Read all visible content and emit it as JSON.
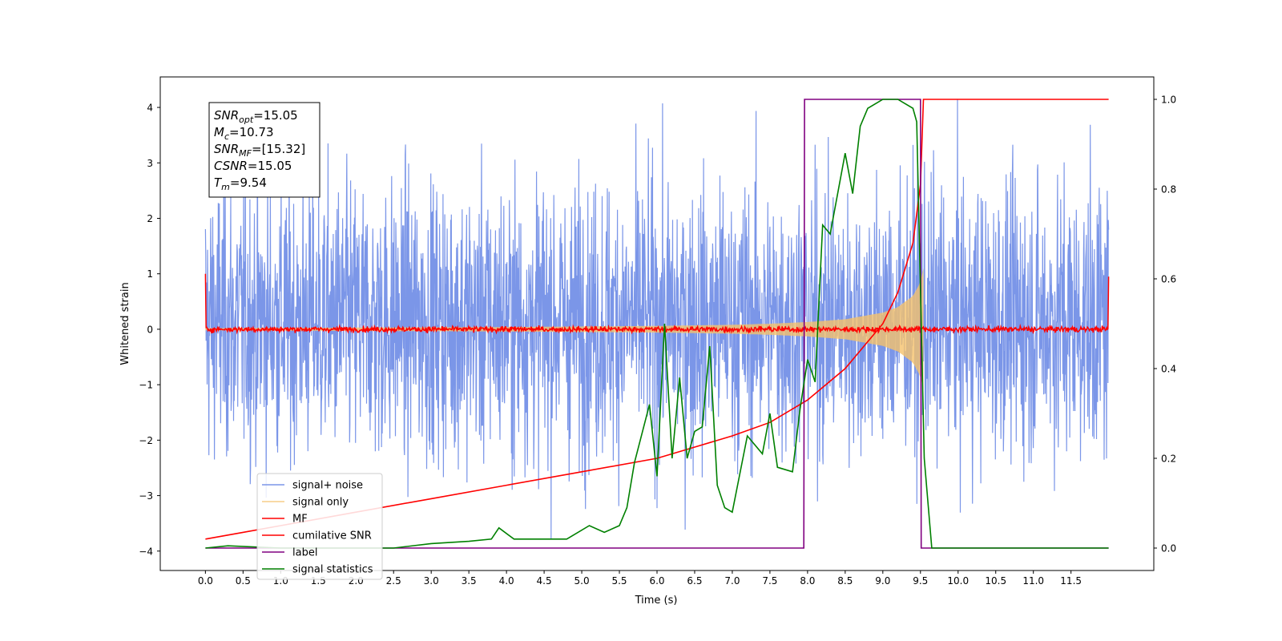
{
  "chart_data": {
    "type": "line",
    "title": "",
    "xlabel": "Time (s)",
    "ylabel": "Whitened strain",
    "xlim": [
      -0.6,
      12.6
    ],
    "ylim": [
      -4.35,
      4.55
    ],
    "y2lim": [
      -0.05,
      1.05
    ],
    "xticks": [
      0.0,
      0.5,
      1.0,
      1.5,
      2.0,
      2.5,
      3.0,
      3.5,
      4.0,
      4.5,
      5.0,
      5.5,
      6.0,
      6.5,
      7.0,
      7.5,
      8.0,
      8.5,
      9.0,
      9.5,
      10.0,
      10.5,
      11.0,
      11.5
    ],
    "xtick_labels": [
      "0.0",
      "0.5",
      "1.0",
      "1.5",
      "2.0",
      "2.5",
      "3.0",
      "3.5",
      "4.0",
      "4.5",
      "5.0",
      "5.5",
      "6.0",
      "6.5",
      "7.0",
      "7.5",
      "8.0",
      "8.5",
      "9.0",
      "9.5",
      "10.0",
      "10.5",
      "11.0",
      "11.5"
    ],
    "yticks": [
      -4,
      -3,
      -2,
      -1,
      0,
      1,
      2,
      3,
      4
    ],
    "ytick_labels": [
      "−4",
      "−3",
      "−2",
      "−1",
      "0",
      "1",
      "2",
      "3",
      "4"
    ],
    "y2ticks": [
      0.0,
      0.2,
      0.4,
      0.6,
      0.8,
      1.0
    ],
    "y2tick_labels": [
      "0.0",
      "0.2",
      "0.4",
      "0.6",
      "0.8",
      "1.0"
    ],
    "legend_position": "lower-left",
    "grid": false,
    "annotation": {
      "lines": [
        {
          "main": "SNR",
          "sub": "opt",
          "value": "=15.05"
        },
        {
          "main": "M",
          "sub": "c",
          "value": "=10.73"
        },
        {
          "main": "SNR",
          "sub": "MF",
          "value": "=[15.32]"
        },
        {
          "main": "CSNR",
          "sub": "",
          "value": "=15.05"
        },
        {
          "main": "T",
          "sub": "m",
          "value": "=9.54"
        }
      ]
    },
    "noise": {
      "t_start": 0.0,
      "t_end": 12.0,
      "typical_range": [
        -2.0,
        2.3
      ],
      "max": 4.2,
      "min": -3.9
    },
    "signal_envelope": {
      "t": [
        0.0,
        2.0,
        4.0,
        5.0,
        6.0,
        7.0,
        7.5,
        8.0,
        8.5,
        9.0,
        9.2,
        9.4,
        9.5,
        9.54
      ],
      "amp": [
        0.02,
        0.03,
        0.04,
        0.05,
        0.06,
        0.08,
        0.1,
        0.13,
        0.18,
        0.3,
        0.4,
        0.6,
        0.85,
        1.1
      ]
    },
    "mf_level": {
      "t": [
        0.0,
        12.0
      ],
      "mean": 0.0,
      "spread": 0.08,
      "start_value": 1.0,
      "end_value": 0.95
    },
    "series": [
      {
        "name": "signal+ noise",
        "color": "#7b96e8",
        "axis": "left",
        "kind": "noise"
      },
      {
        "name": "signal only",
        "color": "#f5c26b",
        "axis": "left",
        "kind": "chirp"
      },
      {
        "name": "MF",
        "color": "#ff0000",
        "axis": "left",
        "kind": "mf"
      },
      {
        "name": "cumilative SNR",
        "color": "#ff0000",
        "axis": "right",
        "x": [
          0.0,
          0.5,
          1.0,
          2.0,
          3.0,
          4.0,
          5.0,
          6.0,
          6.5,
          7.0,
          7.5,
          8.0,
          8.5,
          9.0,
          9.2,
          9.4,
          9.5,
          9.54,
          12.0
        ],
        "y": [
          0.02,
          0.035,
          0.05,
          0.08,
          0.11,
          0.14,
          0.17,
          0.2,
          0.225,
          0.25,
          0.28,
          0.33,
          0.4,
          0.5,
          0.57,
          0.68,
          0.81,
          1.0,
          1.0
        ]
      },
      {
        "name": "label",
        "color": "#800080",
        "axis": "right",
        "x": [
          0.0,
          7.95,
          7.96,
          9.5,
          9.51,
          12.0
        ],
        "y": [
          0.0,
          0.0,
          1.0,
          1.0,
          0.0,
          0.0
        ]
      },
      {
        "name": "signal statistics",
        "color": "#008000",
        "axis": "right",
        "x": [
          0.0,
          0.3,
          1.0,
          2.0,
          2.5,
          3.0,
          3.5,
          3.8,
          3.9,
          4.1,
          4.5,
          4.8,
          5.1,
          5.3,
          5.5,
          5.6,
          5.7,
          5.9,
          6.0,
          6.1,
          6.2,
          6.3,
          6.4,
          6.5,
          6.6,
          6.7,
          6.8,
          6.9,
          7.0,
          7.2,
          7.4,
          7.5,
          7.6,
          7.8,
          7.9,
          8.0,
          8.1,
          8.2,
          8.3,
          8.5,
          8.6,
          8.7,
          8.8,
          9.0,
          9.2,
          9.4,
          9.45,
          9.55,
          9.65,
          12.0
        ],
        "y": [
          0.0,
          0.005,
          0.0,
          0.0,
          0.0,
          0.01,
          0.015,
          0.02,
          0.045,
          0.02,
          0.02,
          0.02,
          0.05,
          0.035,
          0.05,
          0.09,
          0.19,
          0.32,
          0.16,
          0.5,
          0.2,
          0.38,
          0.2,
          0.26,
          0.27,
          0.45,
          0.14,
          0.09,
          0.08,
          0.25,
          0.21,
          0.3,
          0.18,
          0.17,
          0.31,
          0.42,
          0.37,
          0.72,
          0.7,
          0.88,
          0.79,
          0.94,
          0.98,
          1.0,
          1.0,
          0.98,
          0.95,
          0.2,
          0.0,
          0.0
        ]
      }
    ]
  }
}
